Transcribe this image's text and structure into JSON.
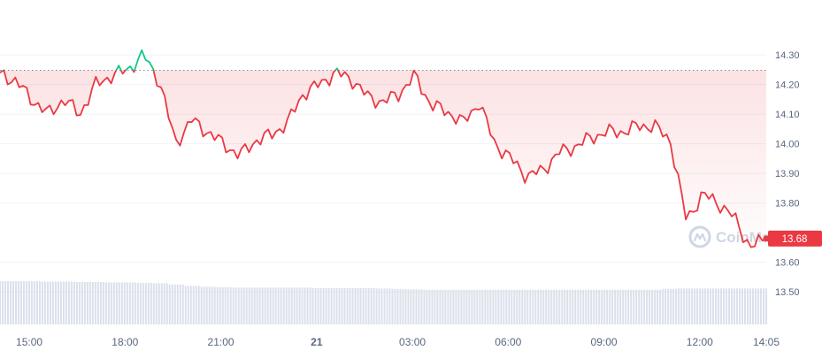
{
  "colors": {
    "down_line": "#ea3943",
    "up_line": "#16c784",
    "fill": "#ea3943",
    "grid": "#f0f2f5",
    "axis_text": "#58667e",
    "volume": "#cfd6e4",
    "price_badge_bg": "#ea3943",
    "price_badge_text": "#ffffff",
    "baseline": "#808a9d",
    "watermark": "#cfd6e4"
  },
  "watermark": {
    "text": "CoinMarketCap",
    "icon": "coinmarketcap-logo-icon"
  },
  "current_price_label": "13.68",
  "chart_data": {
    "type": "area",
    "x_tick_labels": [
      "15:00",
      "18:00",
      "21:00",
      "21",
      "03:00",
      "06:00",
      "09:00",
      "12:00",
      "14:05"
    ],
    "y_tick_labels": [
      "14.30",
      "14.20",
      "14.10",
      "14.00",
      "13.90",
      "13.80",
      "13.60",
      "13.50"
    ],
    "ylim": [
      13.45,
      14.36
    ],
    "baseline": 14.248,
    "x_hours": [
      0,
      0.5,
      1,
      1.5,
      2,
      2.5,
      3,
      3.5,
      4,
      4.5,
      5,
      5.5,
      6,
      6.5,
      7,
      7.5,
      8,
      8.5,
      9,
      9.5,
      10,
      10.5,
      11,
      11.5,
      12,
      12.5,
      13,
      13.5,
      14,
      14.5,
      15,
      15.5,
      16,
      16.5,
      17,
      17.5,
      18,
      18.5,
      19,
      19.5,
      20,
      20.5,
      21,
      21.5,
      22,
      22.5,
      23,
      23.5,
      24
    ],
    "price": [
      14.24,
      14.21,
      14.15,
      14.1,
      14.15,
      14.1,
      14.2,
      14.23,
      14.25,
      14.3,
      14.21,
      14.0,
      14.08,
      14.04,
      14.0,
      13.96,
      14.01,
      14.03,
      14.07,
      14.17,
      14.2,
      14.24,
      14.22,
      14.16,
      14.14,
      14.17,
      14.23,
      14.13,
      14.11,
      14.07,
      14.14,
      14.0,
      13.95,
      13.89,
      13.91,
      13.97,
      13.99,
      14.02,
      14.04,
      14.04,
      14.06,
      14.06,
      14.01,
      13.74,
      13.83,
      13.8,
      13.75,
      13.65,
      13.68
    ],
    "volume_relative": [
      1.0,
      1.0,
      1.0,
      0.99,
      0.99,
      0.98,
      0.98,
      0.97,
      0.97,
      0.96,
      0.95,
      0.92,
      0.89,
      0.87,
      0.86,
      0.85,
      0.85,
      0.85,
      0.85,
      0.85,
      0.84,
      0.84,
      0.84,
      0.84,
      0.83,
      0.82,
      0.81,
      0.8,
      0.8,
      0.8,
      0.8,
      0.8,
      0.8,
      0.8,
      0.8,
      0.8,
      0.8,
      0.8,
      0.8,
      0.8,
      0.8,
      0.8,
      0.82,
      0.83,
      0.83,
      0.83,
      0.83,
      0.83,
      0.83
    ]
  }
}
